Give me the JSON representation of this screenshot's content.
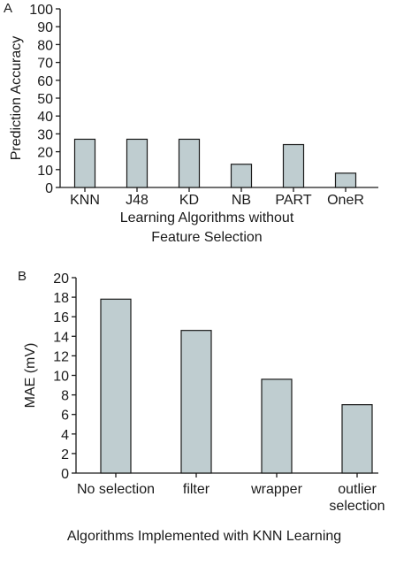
{
  "chart_data": [
    {
      "panel_label": "A",
      "type": "bar",
      "categories": [
        "KNN",
        "J48",
        "KD",
        "NB",
        "PART",
        "OneR"
      ],
      "values": [
        27,
        27,
        27,
        13,
        24,
        8
      ],
      "title": "",
      "xlabel": [
        "Learning Algorithms without",
        "Feature Selection"
      ],
      "ylabel": "Prediction Accuracy",
      "ylim": [
        0,
        100
      ],
      "yticks": [
        "0",
        "10",
        "20",
        "30",
        "40",
        "50",
        "60",
        "70",
        "80",
        "90",
        "100"
      ],
      "bar_color": "#bfcdd0",
      "grid": false
    },
    {
      "panel_label": "B",
      "type": "bar",
      "categories": [
        [
          "No selection"
        ],
        [
          "filter"
        ],
        [
          "wrapper"
        ],
        [
          "outlier",
          "selection"
        ]
      ],
      "values": [
        17.8,
        14.6,
        9.6,
        7.0
      ],
      "title": "",
      "xlabel": [
        "Algorithms Implemented with KNN Learning"
      ],
      "ylabel": "MAE (mV)",
      "ylim": [
        0,
        20
      ],
      "yticks": [
        "0",
        "2",
        "4",
        "6",
        "8",
        "10",
        "12",
        "14",
        "16",
        "18",
        "20"
      ],
      "bar_color": "#bfcdd0",
      "grid": false
    }
  ]
}
